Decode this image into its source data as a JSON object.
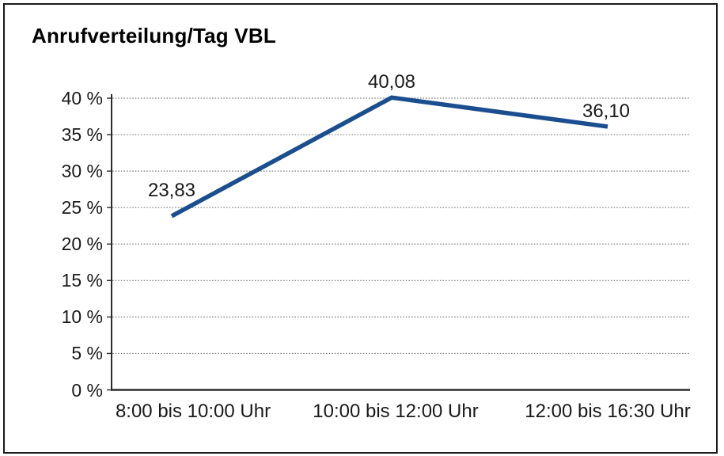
{
  "chart_data": {
    "type": "line",
    "title": "Anrufverteilung/Tag VBL",
    "categories": [
      "8:00 bis 10:00 Uhr",
      "10:00 bis 12:00 Uhr",
      "12:00 bis 16:30 Uhr"
    ],
    "values": [
      23.83,
      40.08,
      36.1
    ],
    "point_labels": [
      "23,83",
      "40,08",
      "36,10"
    ],
    "y_tick_labels": [
      "0 %",
      "5 %",
      "10 %",
      "15 %",
      "20 %",
      "25 %",
      "30 %",
      "35 %",
      "40 %"
    ],
    "y_tick_values": [
      0,
      5,
      10,
      15,
      20,
      25,
      30,
      35,
      40
    ],
    "ylim": [
      0,
      40
    ],
    "xlabel": "",
    "ylabel": "",
    "grid": "horizontal-dotted",
    "legend": "none",
    "colors": {
      "line": "#1a4e8f",
      "axis": "#2b2b2b",
      "gridline": "#7f7f7f",
      "text": "#1a1a1a",
      "title": "#000000",
      "border": "#1a1a1a",
      "background": "#ffffff"
    }
  }
}
